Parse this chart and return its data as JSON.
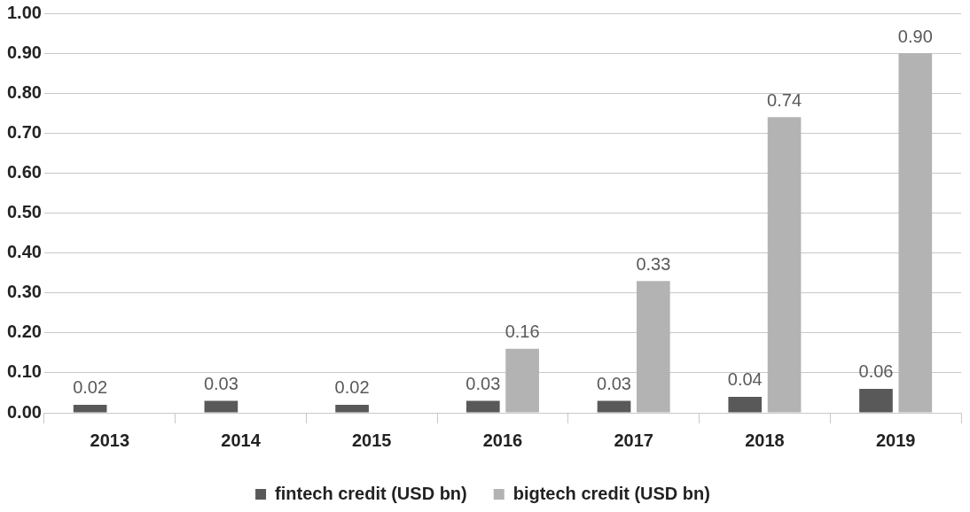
{
  "chart_data": {
    "type": "bar",
    "categories": [
      "2013",
      "2014",
      "2015",
      "2016",
      "2017",
      "2018",
      "2019"
    ],
    "series": [
      {
        "name": "fintech credit (USD bn)",
        "color": "#595959",
        "values": [
          0.02,
          0.03,
          0.02,
          0.03,
          0.03,
          0.04,
          0.06
        ],
        "value_labels": [
          "0.02",
          "0.03",
          "0.02",
          "0.03",
          "0.03",
          "0.04",
          "0.06"
        ]
      },
      {
        "name": "bigtech credit (USD bn)",
        "color": "#b3b3b3",
        "values": [
          null,
          null,
          null,
          0.16,
          0.33,
          0.74,
          0.9
        ],
        "value_labels": [
          null,
          null,
          null,
          "0.16",
          "0.33",
          "0.74",
          "0.90"
        ]
      }
    ],
    "ylim": [
      0,
      1
    ],
    "yticks": [
      {
        "value": 0,
        "label": "0.00"
      },
      {
        "value": 0.1,
        "label": "0.10"
      },
      {
        "value": 0.2,
        "label": "0.20"
      },
      {
        "value": 0.3,
        "label": "0.30"
      },
      {
        "value": 0.4,
        "label": "0.40"
      },
      {
        "value": 0.5,
        "label": "0.50"
      },
      {
        "value": 0.6,
        "label": "0.60"
      },
      {
        "value": 0.7,
        "label": "0.70"
      },
      {
        "value": 0.8,
        "label": "0.80"
      },
      {
        "value": 0.9,
        "label": "0.90"
      },
      {
        "value": 1,
        "label": "1.00"
      }
    ],
    "grid": "y",
    "legend": "bottom"
  }
}
